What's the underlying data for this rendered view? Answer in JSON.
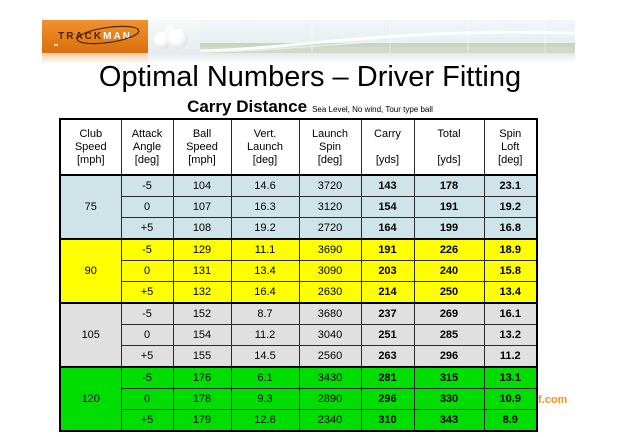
{
  "logo": {
    "brand_track": "TRACK",
    "brand_man": "MAN"
  },
  "title": "Optimal Numbers – Driver Fitting",
  "subtitle": "Carry Distance",
  "subtitle_note": "Sea Level, No wind, Tour type ball",
  "watermark": "f.com",
  "colors": {
    "logo_orange": "#e8821e",
    "watermark_orange": "#f0941e",
    "group_75": "#cfe4e9",
    "group_90": "#ffff00",
    "group_105": "#e0e0e0",
    "group_120": "#00dd00"
  },
  "table": {
    "columns": [
      [
        "Club",
        "Speed",
        "[mph]"
      ],
      [
        "Attack",
        "Angle",
        "[deg]"
      ],
      [
        "Ball",
        "Speed",
        "[mph]"
      ],
      [
        "Vert.",
        "Launch",
        "[deg]"
      ],
      [
        "Launch",
        "Spin",
        "[deg]"
      ],
      [
        "Carry",
        "",
        "[yds]"
      ],
      [
        "Total",
        "",
        "[yds]"
      ],
      [
        "Spin",
        "Loft",
        "[deg]"
      ]
    ],
    "groups": [
      {
        "club_speed": "75",
        "color": "#cfe4e9",
        "rows": [
          [
            "-5",
            "104",
            "14.6",
            "3720",
            "143",
            "178",
            "23.1"
          ],
          [
            "0",
            "107",
            "16.3",
            "3120",
            "154",
            "191",
            "19.2"
          ],
          [
            "+5",
            "108",
            "19.2",
            "2720",
            "164",
            "199",
            "16.8"
          ]
        ]
      },
      {
        "club_speed": "90",
        "color": "#ffff00",
        "rows": [
          [
            "-5",
            "129",
            "11.1",
            "3690",
            "191",
            "226",
            "18.9"
          ],
          [
            "0",
            "131",
            "13.4",
            "3090",
            "203",
            "240",
            "15.8"
          ],
          [
            "+5",
            "132",
            "16.4",
            "2630",
            "214",
            "250",
            "13.4"
          ]
        ]
      },
      {
        "club_speed": "105",
        "color": "#e0e0e0",
        "rows": [
          [
            "-5",
            "152",
            "8.7",
            "3680",
            "237",
            "269",
            "16.1"
          ],
          [
            "0",
            "154",
            "11.2",
            "3040",
            "251",
            "285",
            "13.2"
          ],
          [
            "+5",
            "155",
            "14.5",
            "2560",
            "263",
            "296",
            "11.2"
          ]
        ]
      },
      {
        "club_speed": "120",
        "color": "#00dd00",
        "rows": [
          [
            "-5",
            "176",
            "6.1",
            "3430",
            "281",
            "315",
            "13.1"
          ],
          [
            "0",
            "178",
            "9.3",
            "2890",
            "296",
            "330",
            "10.9"
          ],
          [
            "+5",
            "179",
            "12.6",
            "2340",
            "310",
            "343",
            "8.9"
          ]
        ]
      }
    ]
  }
}
